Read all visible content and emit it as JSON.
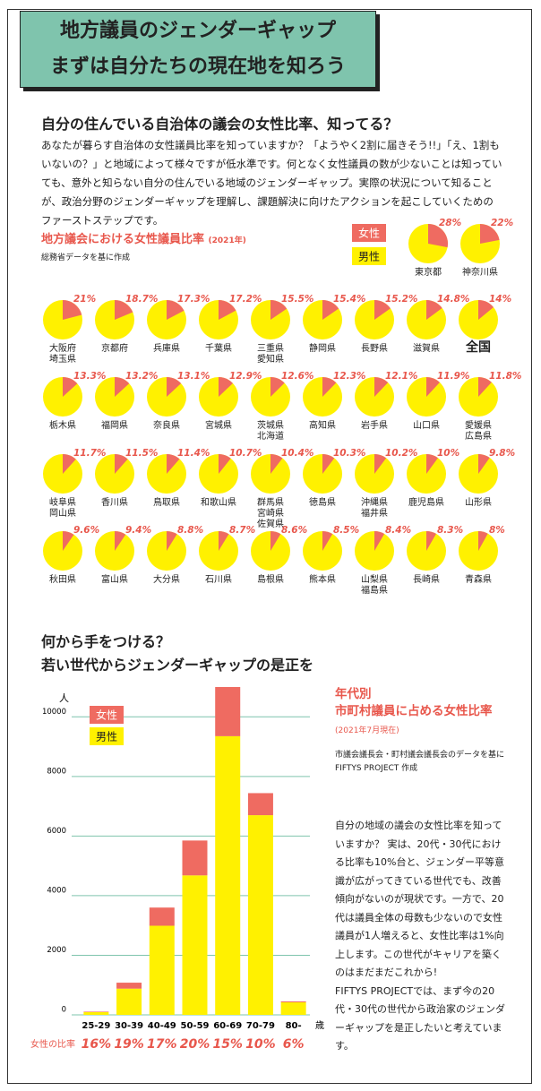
{
  "header": {
    "title_lines": [
      "地方議員のジェンダーギャップ",
      "まずは自分たちの現在地を知ろう"
    ]
  },
  "section1": {
    "heading": "自分の住んでいる自治体の議会の女性比率、知ってる？",
    "body": "あなたが暮らす自治体の女性議員比率を知っていますか？「ようやく2割に届きそう!!」「え、1割もいないの？」と地域によって様々ですが低水準です。何となく女性議員の数が少ないことは知っていても、意外と知らない自分の住んでいる地域のジェンダーギャップ。実際の状況について知ることが、政治分野のジェンダーギャップを理解し、課題解決に向けたアクションを起こしていくためのファーストステップです。"
  },
  "section2": {
    "heading_lines": [
      "何から手をつける？",
      "若い世代からジェンダーギャップの是正を"
    ]
  },
  "chart_data": [
    {
      "type": "pie",
      "title": "地方議会における女性議員比率",
      "title_note": "(2021年)",
      "subtitle": "総務省データを基に作成",
      "legend": [
        {
          "name": "女性",
          "color": "#ef6b61"
        },
        {
          "name": "男性",
          "color": "#fff100"
        }
      ],
      "highlight": 10,
      "categories": [
        "東京都",
        "神奈川県",
        "大阪府\n埼玉県",
        "京都府",
        "兵庫県",
        "千葉県",
        "三重県\n愛知県",
        "静岡県",
        "長野県",
        "滋賀県",
        "全国",
        "栃木県",
        "福岡県",
        "奈良県",
        "宮城県",
        "茨城県\n北海道",
        "高知県",
        "岩手県",
        "山口県",
        "愛媛県\n広島県",
        "岐阜県\n岡山県",
        "香川県",
        "鳥取県",
        "和歌山県",
        "群馬県\n宮崎県\n佐賀県",
        "徳島県",
        "沖縄県\n福井県",
        "鹿児島県",
        "山形県",
        "秋田県",
        "富山県",
        "大分県",
        "石川県",
        "島根県",
        "熊本県",
        "山梨県\n福島県",
        "長崎県",
        "青森県"
      ],
      "values": [
        28,
        22,
        21,
        18.7,
        17.3,
        17.2,
        15.5,
        15.4,
        15.2,
        14.8,
        14,
        13.3,
        13.2,
        13.1,
        12.9,
        12.6,
        12.3,
        12.1,
        11.9,
        11.8,
        11.7,
        11.5,
        11.4,
        10.7,
        10.4,
        10.3,
        10.2,
        10,
        9.8,
        9.6,
        9.4,
        8.8,
        8.7,
        8.6,
        8.5,
        8.4,
        8.3,
        8
      ],
      "value_labels": [
        "28%",
        "22%",
        "21%",
        "18.7%",
        "17.3%",
        "17.2%",
        "15.5%",
        "15.4%",
        "15.2%",
        "14.8%",
        "14%",
        "13.3%",
        "13.2%",
        "13.1%",
        "12.9%",
        "12.6%",
        "12.3%",
        "12.1%",
        "11.9%",
        "11.8%",
        "11.7%",
        "11.5%",
        "11.4%",
        "10.7%",
        "10.4%",
        "10.3%",
        "10.2%",
        "10%",
        "9.8%",
        "9.6%",
        "9.4%",
        "8.8%",
        "8.7%",
        "8.6%",
        "8.5%",
        "8.4%",
        "8.3%",
        "8%"
      ]
    },
    {
      "type": "bar",
      "stacked": true,
      "y_label": "人",
      "x_label": "歳",
      "categories": [
        "25-29",
        "30-39",
        "40-49",
        "50-59",
        "60-69",
        "70-79",
        "80-"
      ],
      "series": [
        {
          "name": "女性",
          "color": "#ef6b61",
          "values": [
            17,
            200,
            610,
            1170,
            1650,
            740,
            30
          ]
        },
        {
          "name": "男性",
          "color": "#fff100",
          "values": [
            90,
            880,
            2990,
            4680,
            9350,
            6700,
            420
          ]
        }
      ],
      "ylim": [
        0,
        11000
      ],
      "yticks": [
        0,
        2000,
        4000,
        6000,
        8000,
        10000
      ],
      "grid": true,
      "ratio_label": "女性の比率",
      "ratios": [
        16,
        19,
        17,
        20,
        15,
        10,
        6
      ],
      "ratio_labels": [
        "16%",
        "19%",
        "17%",
        "20%",
        "15%",
        "10%",
        "6%"
      ]
    }
  ],
  "side_text": {
    "title": "年代別\n市町村議員に占める女性比率",
    "note": "(2021年7月現在)",
    "source": "市議会議長会・町村議会議長会のデータを基に\nFIFTYS PROJECT 作成",
    "body": "自分の地域の議会の女性比率を知っていますか？ 実は、20代・30代における比率も10%台と、ジェンダー平等意識が広がってきている世代でも、改善傾向がないのが現状です。一方で、20代は議員全体の母数も少ないので女性議員が1人増えると、女性比率は1%向上します。この世代がキャリアを築くのはまだまだこれから!\nFIFTYS PROJECTでは、まず今の20代・30代の世代から政治家のジェンダーギャップを是正したいと考えています。"
  }
}
